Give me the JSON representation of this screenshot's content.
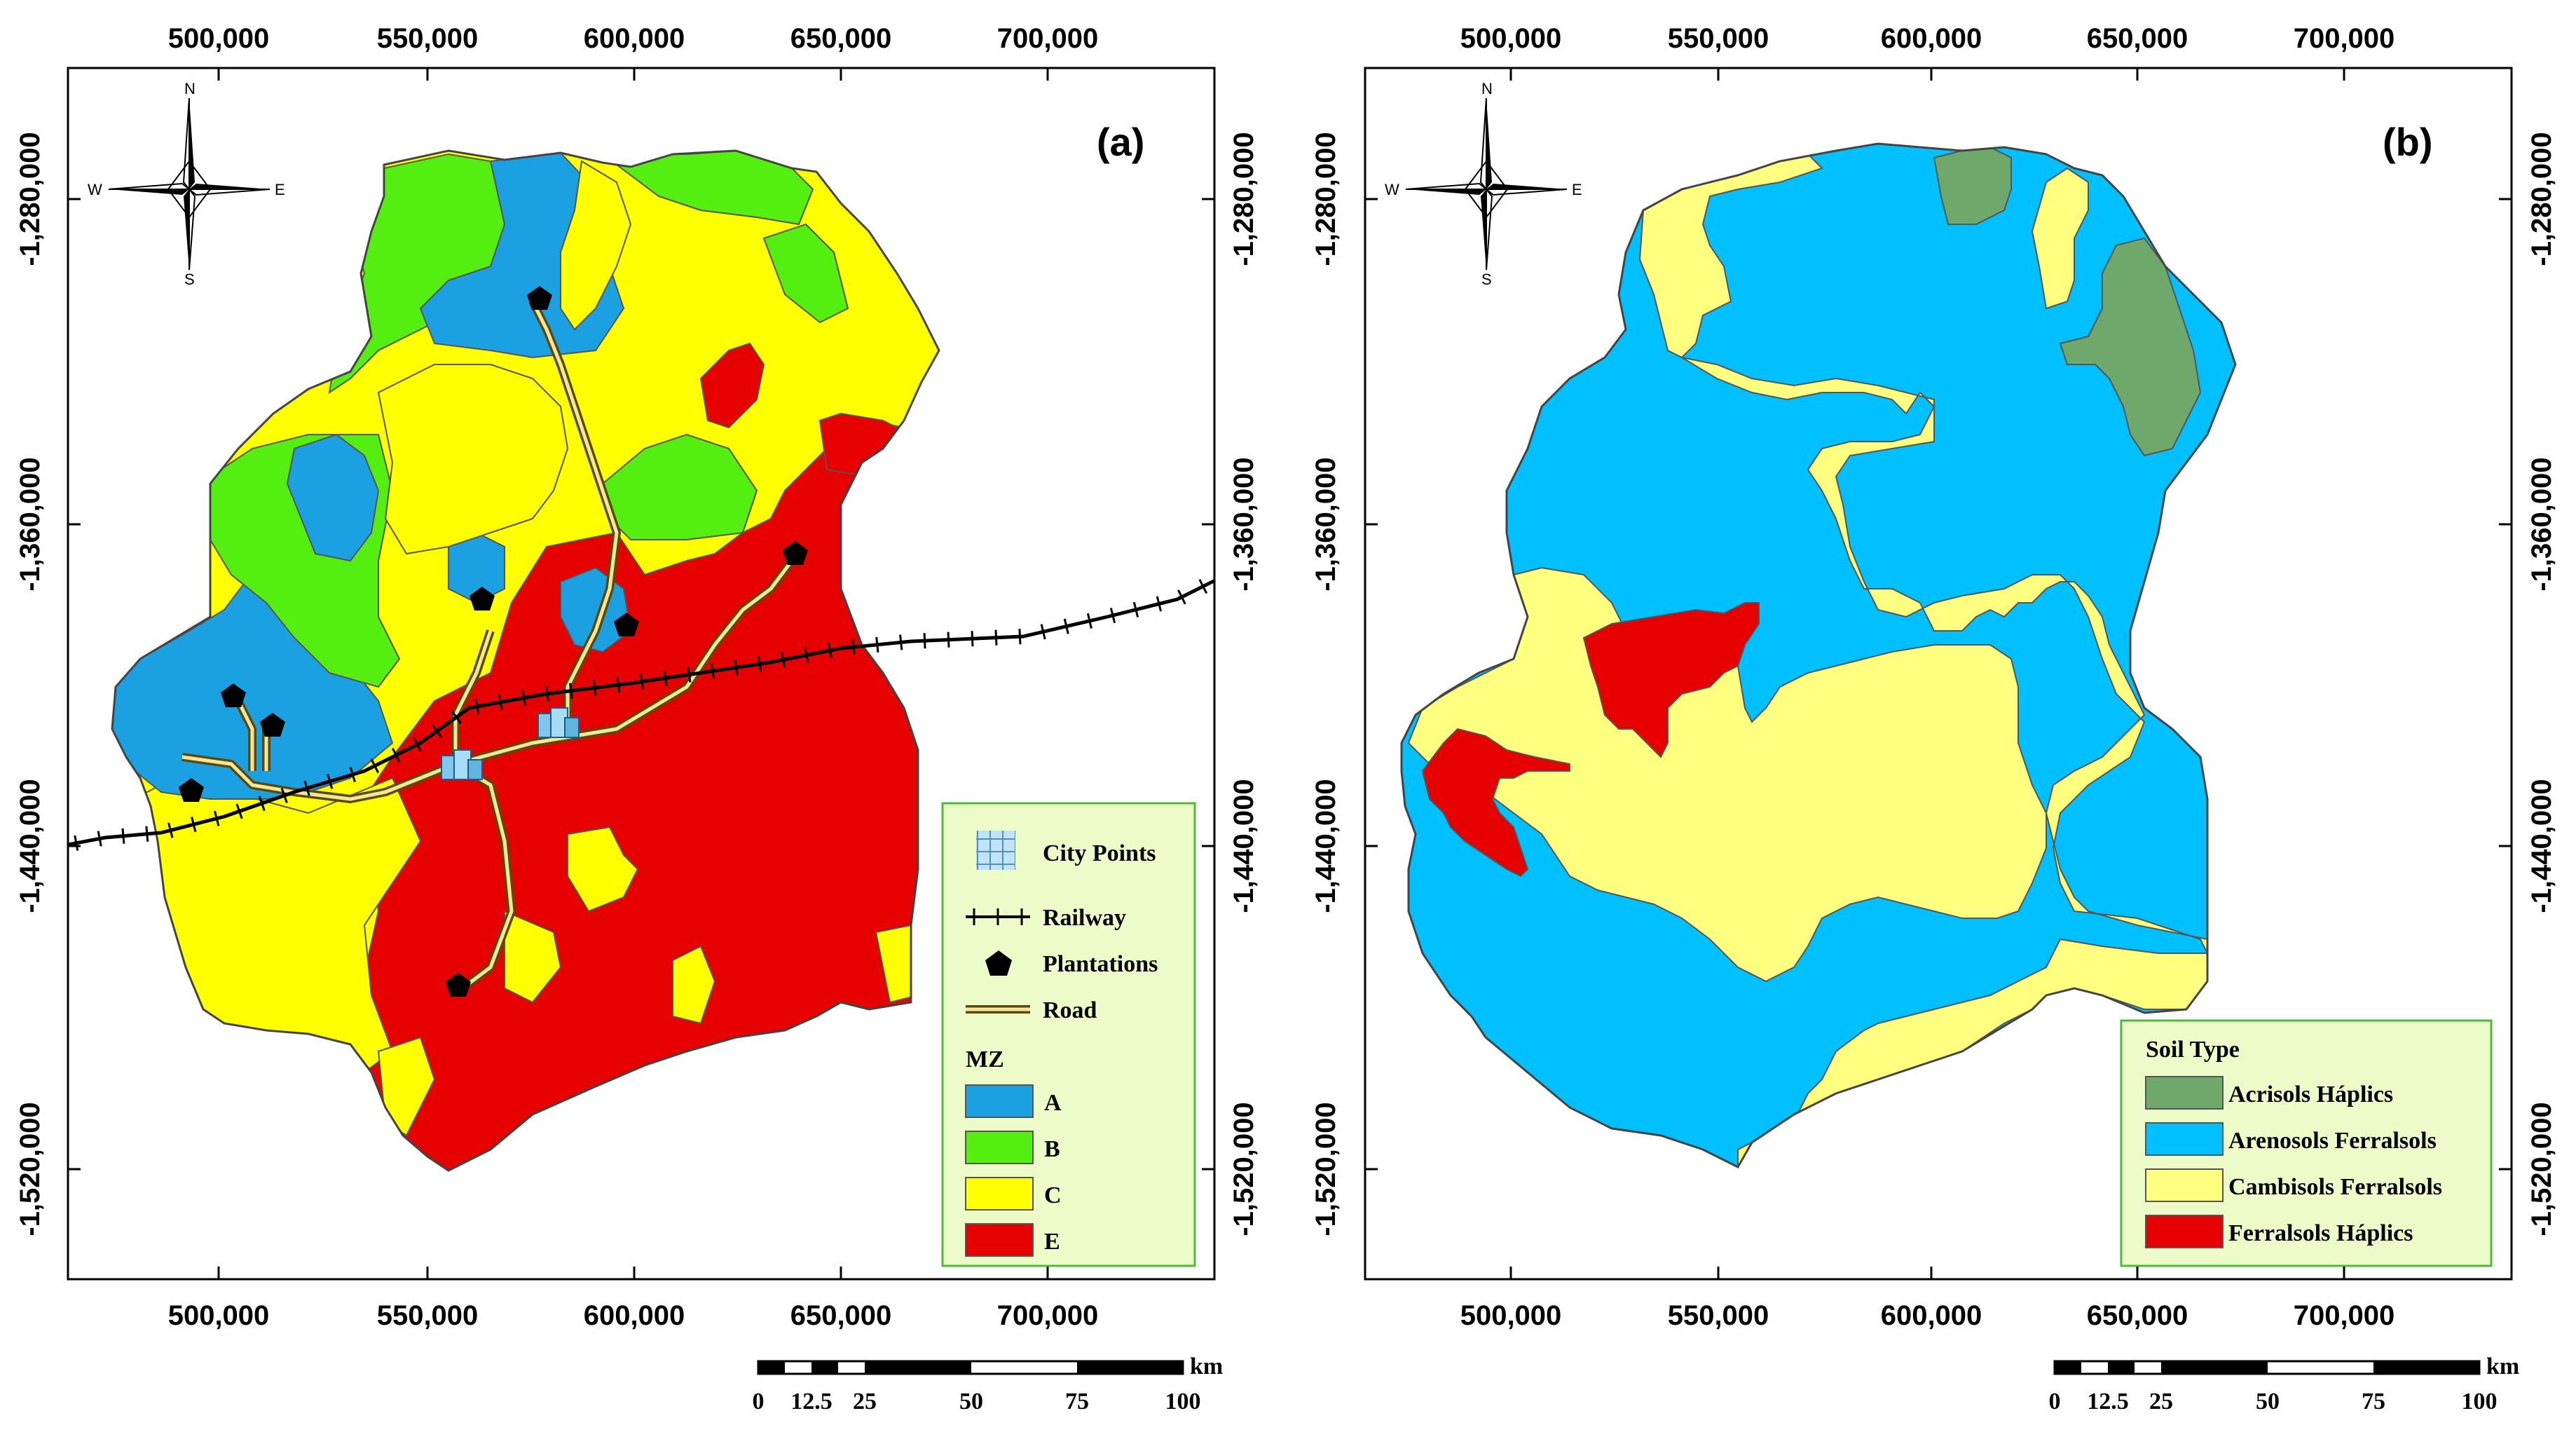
{
  "panel_a": {
    "label": "(a)",
    "x_ticks": [
      "500,000",
      "550,000",
      "600,000",
      "650,000",
      "700,000"
    ],
    "y_ticks": [
      "-1,280,000",
      "-1,360,000",
      "-1,440,000",
      "-1,520,000"
    ],
    "north_arrow": {
      "n": "N",
      "s": "S",
      "e": "E",
      "w": "W"
    },
    "legend": {
      "city_points": "City Points",
      "railway": "Railway",
      "plantations": "Plantations",
      "road": "Road",
      "mz_title": "MZ",
      "classes": [
        {
          "label": "A",
          "color": "#1ba1e2"
        },
        {
          "label": "B",
          "color": "#55ee11"
        },
        {
          "label": "C",
          "color": "#ffff00"
        },
        {
          "label": "E",
          "color": "#e60000"
        }
      ]
    },
    "scalebar": {
      "unit": "km",
      "labels": [
        "0",
        "12.5",
        "25",
        "50",
        "75",
        "100"
      ]
    }
  },
  "panel_b": {
    "label": "(b)",
    "x_ticks": [
      "500,000",
      "550,000",
      "600,000",
      "650,000",
      "700,000"
    ],
    "y_ticks": [
      "-1,280,000",
      "-1,360,000",
      "-1,440,000",
      "-1,520,000"
    ],
    "north_arrow": {
      "n": "N",
      "s": "S",
      "e": "E",
      "w": "W"
    },
    "legend": {
      "title": "Soil Type",
      "classes": [
        {
          "label": "Acrisols Háplics",
          "color": "#6fa86b"
        },
        {
          "label": "Arenosols Ferralsols",
          "color": "#00c0ff"
        },
        {
          "label": "Cambisols Ferralsols",
          "color": "#ffff80"
        },
        {
          "label": "Ferralsols Háplics",
          "color": "#e60000"
        }
      ]
    },
    "scalebar": {
      "unit": "km",
      "labels": [
        "0",
        "12.5",
        "25",
        "50",
        "75",
        "100"
      ]
    }
  }
}
